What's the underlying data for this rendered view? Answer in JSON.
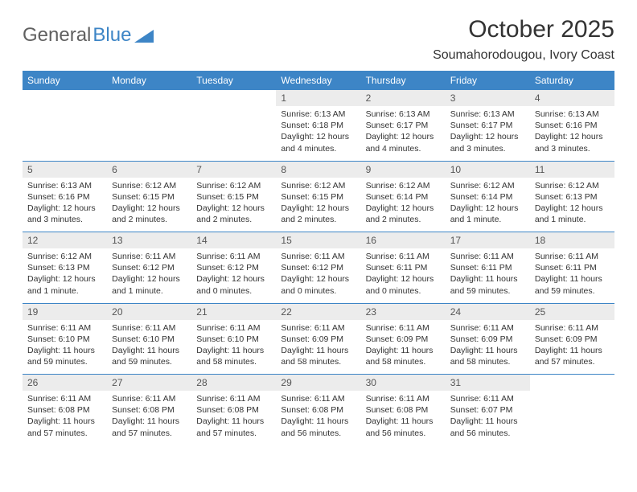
{
  "logo": {
    "text1": "General",
    "text2": "Blue"
  },
  "title": "October 2025",
  "location": "Soumahorodougou, Ivory Coast",
  "colors": {
    "header_bg": "#3d85c6",
    "header_text": "#ffffff",
    "daynum_bg": "#ececec",
    "text": "#333333",
    "rule": "#3d85c6"
  },
  "day_labels": [
    "Sunday",
    "Monday",
    "Tuesday",
    "Wednesday",
    "Thursday",
    "Friday",
    "Saturday"
  ],
  "weeks": [
    [
      null,
      null,
      null,
      {
        "n": "1",
        "sunrise": "6:13 AM",
        "sunset": "6:18 PM",
        "daylight": "12 hours and 4 minutes."
      },
      {
        "n": "2",
        "sunrise": "6:13 AM",
        "sunset": "6:17 PM",
        "daylight": "12 hours and 4 minutes."
      },
      {
        "n": "3",
        "sunrise": "6:13 AM",
        "sunset": "6:17 PM",
        "daylight": "12 hours and 3 minutes."
      },
      {
        "n": "4",
        "sunrise": "6:13 AM",
        "sunset": "6:16 PM",
        "daylight": "12 hours and 3 minutes."
      }
    ],
    [
      {
        "n": "5",
        "sunrise": "6:13 AM",
        "sunset": "6:16 PM",
        "daylight": "12 hours and 3 minutes."
      },
      {
        "n": "6",
        "sunrise": "6:12 AM",
        "sunset": "6:15 PM",
        "daylight": "12 hours and 2 minutes."
      },
      {
        "n": "7",
        "sunrise": "6:12 AM",
        "sunset": "6:15 PM",
        "daylight": "12 hours and 2 minutes."
      },
      {
        "n": "8",
        "sunrise": "6:12 AM",
        "sunset": "6:15 PM",
        "daylight": "12 hours and 2 minutes."
      },
      {
        "n": "9",
        "sunrise": "6:12 AM",
        "sunset": "6:14 PM",
        "daylight": "12 hours and 2 minutes."
      },
      {
        "n": "10",
        "sunrise": "6:12 AM",
        "sunset": "6:14 PM",
        "daylight": "12 hours and 1 minute."
      },
      {
        "n": "11",
        "sunrise": "6:12 AM",
        "sunset": "6:13 PM",
        "daylight": "12 hours and 1 minute."
      }
    ],
    [
      {
        "n": "12",
        "sunrise": "6:12 AM",
        "sunset": "6:13 PM",
        "daylight": "12 hours and 1 minute."
      },
      {
        "n": "13",
        "sunrise": "6:11 AM",
        "sunset": "6:12 PM",
        "daylight": "12 hours and 1 minute."
      },
      {
        "n": "14",
        "sunrise": "6:11 AM",
        "sunset": "6:12 PM",
        "daylight": "12 hours and 0 minutes."
      },
      {
        "n": "15",
        "sunrise": "6:11 AM",
        "sunset": "6:12 PM",
        "daylight": "12 hours and 0 minutes."
      },
      {
        "n": "16",
        "sunrise": "6:11 AM",
        "sunset": "6:11 PM",
        "daylight": "12 hours and 0 minutes."
      },
      {
        "n": "17",
        "sunrise": "6:11 AM",
        "sunset": "6:11 PM",
        "daylight": "11 hours and 59 minutes."
      },
      {
        "n": "18",
        "sunrise": "6:11 AM",
        "sunset": "6:11 PM",
        "daylight": "11 hours and 59 minutes."
      }
    ],
    [
      {
        "n": "19",
        "sunrise": "6:11 AM",
        "sunset": "6:10 PM",
        "daylight": "11 hours and 59 minutes."
      },
      {
        "n": "20",
        "sunrise": "6:11 AM",
        "sunset": "6:10 PM",
        "daylight": "11 hours and 59 minutes."
      },
      {
        "n": "21",
        "sunrise": "6:11 AM",
        "sunset": "6:10 PM",
        "daylight": "11 hours and 58 minutes."
      },
      {
        "n": "22",
        "sunrise": "6:11 AM",
        "sunset": "6:09 PM",
        "daylight": "11 hours and 58 minutes."
      },
      {
        "n": "23",
        "sunrise": "6:11 AM",
        "sunset": "6:09 PM",
        "daylight": "11 hours and 58 minutes."
      },
      {
        "n": "24",
        "sunrise": "6:11 AM",
        "sunset": "6:09 PM",
        "daylight": "11 hours and 58 minutes."
      },
      {
        "n": "25",
        "sunrise": "6:11 AM",
        "sunset": "6:09 PM",
        "daylight": "11 hours and 57 minutes."
      }
    ],
    [
      {
        "n": "26",
        "sunrise": "6:11 AM",
        "sunset": "6:08 PM",
        "daylight": "11 hours and 57 minutes."
      },
      {
        "n": "27",
        "sunrise": "6:11 AM",
        "sunset": "6:08 PM",
        "daylight": "11 hours and 57 minutes."
      },
      {
        "n": "28",
        "sunrise": "6:11 AM",
        "sunset": "6:08 PM",
        "daylight": "11 hours and 57 minutes."
      },
      {
        "n": "29",
        "sunrise": "6:11 AM",
        "sunset": "6:08 PM",
        "daylight": "11 hours and 56 minutes."
      },
      {
        "n": "30",
        "sunrise": "6:11 AM",
        "sunset": "6:08 PM",
        "daylight": "11 hours and 56 minutes."
      },
      {
        "n": "31",
        "sunrise": "6:11 AM",
        "sunset": "6:07 PM",
        "daylight": "11 hours and 56 minutes."
      },
      null
    ]
  ],
  "labels": {
    "sunrise": "Sunrise:",
    "sunset": "Sunset:",
    "daylight": "Daylight:"
  }
}
